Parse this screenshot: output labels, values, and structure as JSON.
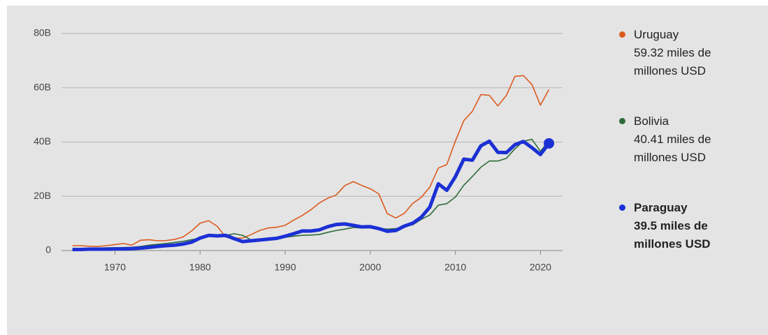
{
  "chart_data": {
    "type": "line",
    "x": [
      1965,
      1966,
      1967,
      1968,
      1969,
      1970,
      1971,
      1972,
      1973,
      1974,
      1975,
      1976,
      1977,
      1978,
      1979,
      1980,
      1981,
      1982,
      1983,
      1984,
      1985,
      1986,
      1987,
      1988,
      1989,
      1990,
      1991,
      1992,
      1993,
      1994,
      1995,
      1996,
      1997,
      1998,
      1999,
      2000,
      2001,
      2002,
      2003,
      2004,
      2005,
      2006,
      2007,
      2008,
      2009,
      2010,
      2011,
      2012,
      2013,
      2014,
      2015,
      2016,
      2017,
      2018,
      2019,
      2020,
      2021
    ],
    "series": [
      {
        "name": "Uruguay",
        "latest_label": "59.32 miles de millones USD",
        "color": "#dc5a1f",
        "line_width": 1.6,
        "values": [
          1.8,
          1.8,
          1.6,
          1.5,
          1.8,
          2.2,
          2.6,
          2.0,
          3.8,
          4.0,
          3.6,
          3.7,
          4.1,
          5.0,
          7.2,
          10.1,
          11.0,
          9.0,
          5.0,
          4.6,
          4.6,
          5.9,
          7.4,
          8.3,
          8.6,
          9.3,
          11.2,
          12.9,
          15.0,
          17.5,
          19.3,
          20.5,
          23.9,
          25.4,
          24.0,
          22.8,
          20.9,
          13.6,
          12.0,
          13.7,
          17.4,
          19.6,
          23.4,
          30.4,
          31.7,
          40.3,
          47.9,
          51.3,
          57.5,
          57.2,
          53.3,
          57.2,
          64.2,
          64.5,
          61.2,
          53.6,
          59.32
        ]
      },
      {
        "name": "Bolivia",
        "latest_label": "40.41 miles de millones USD",
        "color": "#2e6b3a",
        "line_width": 1.6,
        "values": [
          0.6,
          0.7,
          0.8,
          0.9,
          1.0,
          1.0,
          1.1,
          1.2,
          1.5,
          2.0,
          2.3,
          2.6,
          3.0,
          3.4,
          4.0,
          4.5,
          5.6,
          5.7,
          5.6,
          6.2,
          5.6,
          3.9,
          4.2,
          4.4,
          4.6,
          4.9,
          5.3,
          5.6,
          5.7,
          5.9,
          6.7,
          7.4,
          7.9,
          8.5,
          8.3,
          8.4,
          8.2,
          7.9,
          8.1,
          8.8,
          9.5,
          11.5,
          13.1,
          16.7,
          17.3,
          19.7,
          24.1,
          27.3,
          30.7,
          33.0,
          33.0,
          34.0,
          37.5,
          40.3,
          41.0,
          36.6,
          40.41
        ]
      },
      {
        "name": "Paraguay",
        "latest_label": "39.5 miles de millones USD",
        "color": "#1b30d4",
        "line_width": 5,
        "values": [
          0.4,
          0.4,
          0.5,
          0.5,
          0.5,
          0.6,
          0.6,
          0.7,
          0.9,
          1.2,
          1.5,
          1.8,
          2.0,
          2.4,
          3.1,
          4.6,
          5.6,
          5.4,
          5.6,
          4.4,
          3.3,
          3.6,
          3.9,
          4.2,
          4.5,
          5.3,
          6.2,
          7.2,
          7.2,
          7.6,
          8.8,
          9.6,
          9.8,
          9.3,
          8.7,
          8.8,
          8.1,
          7.1,
          7.4,
          9.0,
          10.1,
          12.3,
          16.0,
          24.6,
          22.2,
          27.2,
          33.7,
          33.3,
          38.6,
          40.3,
          36.2,
          36.1,
          39.0,
          40.2,
          37.9,
          35.4,
          39.5
        ]
      }
    ],
    "xlim": [
      1964.7,
      2022.6
    ],
    "xticks": [
      1970,
      1980,
      1990,
      2000,
      2010,
      2020
    ],
    "ylim": [
      0,
      80
    ],
    "yticks": [
      0,
      {
        "value": 20,
        "label": "20B"
      },
      {
        "value": 40,
        "label": "40B"
      },
      {
        "value": 60,
        "label": "60B"
      },
      {
        "value": 80,
        "label": "80B"
      }
    ],
    "grid": true
  }
}
